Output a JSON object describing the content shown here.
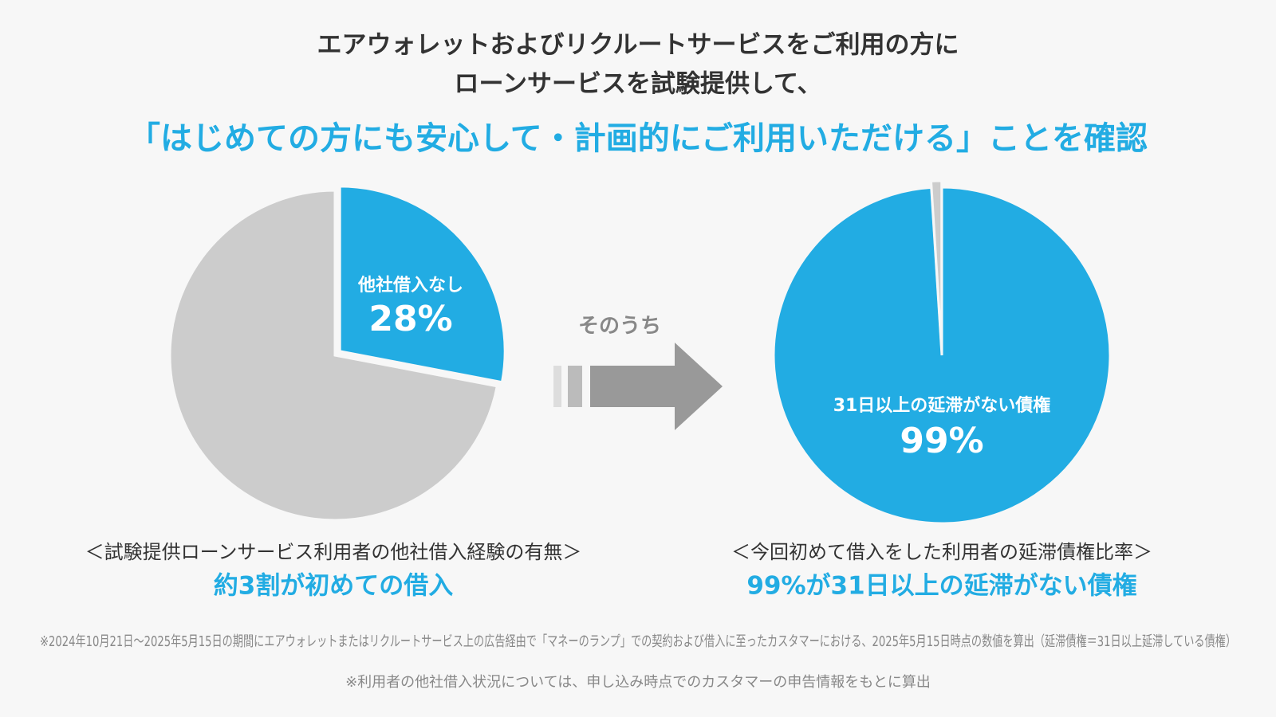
{
  "header": {
    "line1": "エアウォレットおよびリクルートサービスをご利用の方に",
    "line2": "ローンサービスを試験提供して、",
    "headline": "「はじめての方にも安心して・計画的にご利用いただける」ことを確認"
  },
  "arrow_label": "そのうち",
  "chart_data": [
    {
      "type": "pie",
      "categories": [
        "他社借入なし",
        null
      ],
      "values": [
        28,
        72
      ],
      "value_labels": [
        "28%",
        null
      ],
      "colors": [
        "#22ace3",
        "#cccccc"
      ],
      "caption": "＜試験提供ローンサービス利用者の他社借入経験の有無＞",
      "conclusion": "約3割が初めての借入"
    },
    {
      "type": "pie",
      "categories": [
        "31日以上の延滞がない債権",
        null
      ],
      "values": [
        99,
        1
      ],
      "value_labels": [
        "99%",
        null
      ],
      "colors": [
        "#22ace3",
        "#cccccc"
      ],
      "caption": "＜今回初めて借入をした利用者の延滞債権比率＞",
      "conclusion": "99%が31日以上の延滞がない債権"
    }
  ],
  "footnotes": [
    "※2024年10月21日～2025年5月15日の期間にエアウォレットまたはリクルートサービス上の広告経由で「マネーのランプ」での契約および借入に至ったカスタマーにおける、2025年5月15日時点の数値を算出（延滞債権＝31日以上延滞している債権）",
    "※利用者の他社借入状況については、申し込み時点でのカスタマーの申告情報をもとに算出"
  ]
}
